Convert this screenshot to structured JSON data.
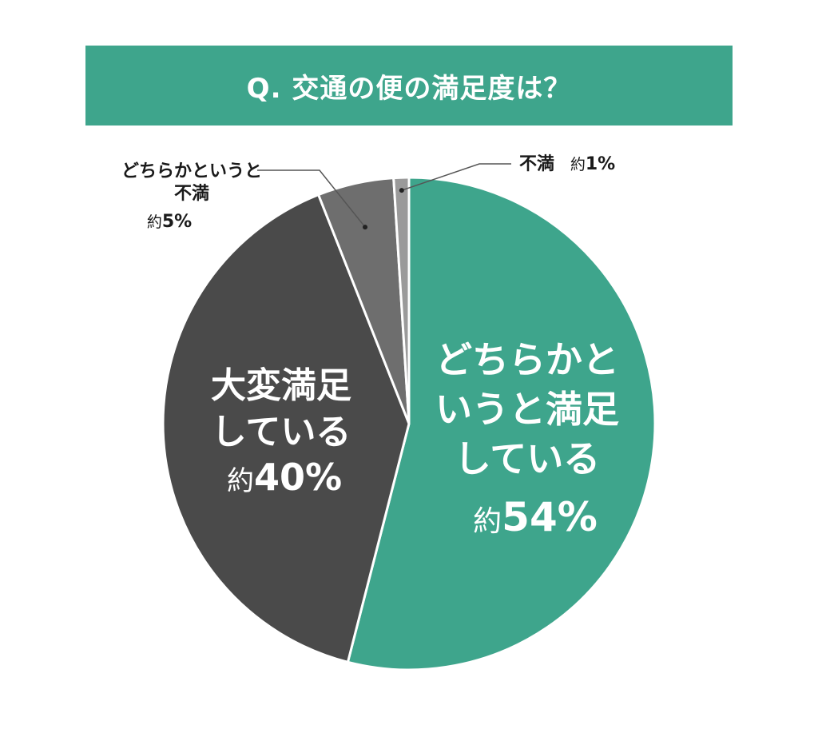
{
  "chart_data": {
    "type": "pie",
    "title": "Q. 交通の便の満足度は？",
    "slices": [
      {
        "label_lines": [
          "どちらかと",
          "いうと満足",
          "している"
        ],
        "prefix": "約",
        "value_text": "54%",
        "value": 54.0,
        "color": "#3ea58c"
      },
      {
        "label_lines": [
          "大変満足",
          "している"
        ],
        "prefix": "約",
        "value_text": "40%",
        "value": 40.0,
        "color": "#4a4a4a"
      },
      {
        "label_lines": [
          "どちらかというと",
          "不満"
        ],
        "prefix": "約",
        "value_text": "5%",
        "value": 5.0,
        "color": "#6e6e6e"
      },
      {
        "label_lines": [
          "不満"
        ],
        "prefix": "約",
        "value_text": "1%",
        "value": 1.0,
        "color": "#9a9a9a"
      }
    ]
  },
  "colors": {
    "banner": "#3ea58c",
    "slice_border": "#ffffff",
    "leader_line": "#555555"
  }
}
